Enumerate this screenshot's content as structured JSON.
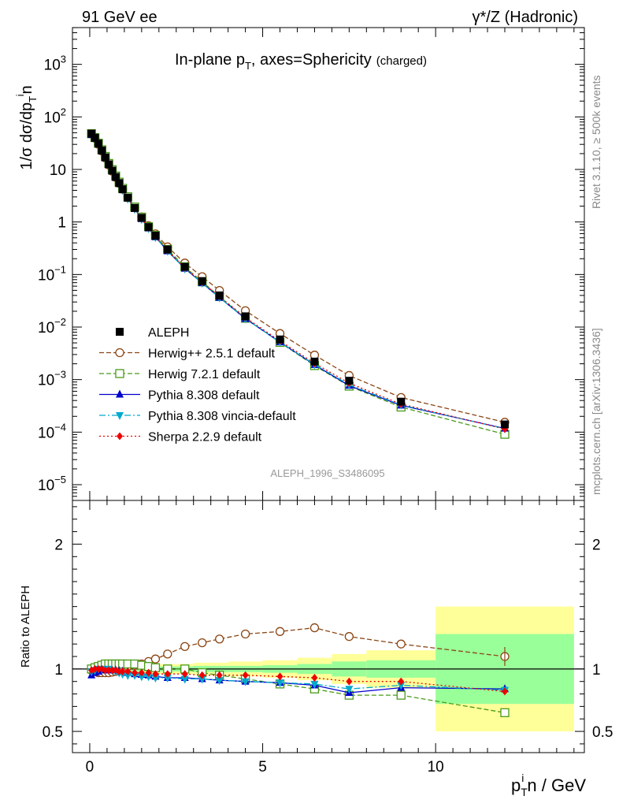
{
  "header": {
    "left": "91 GeV ee",
    "right": "γ*/Z (Hadronic)"
  },
  "side_labels": {
    "rivet": "Rivet 3.1.10, ≥ 500k events",
    "mcplots": "mcplots.cern.ch [arXiv:1306.3436]"
  },
  "chart_data": {
    "type": "line",
    "title": "In-plane p_T, axes=Sphericity (charged)",
    "title_main": "In-plane p",
    "title_sub": "T",
    "title_rest": ", axes=Sphericity",
    "title_small": "(charged)",
    "analysis_id": "ALEPH_1996_S3486095",
    "xlabel": "p_T^i n / GeV",
    "xlabel_parts": {
      "p": "p",
      "sub": "T",
      "sup": "i",
      "rest": "n / GeV"
    },
    "ylabel": "1/σ dσ/dp_T^i n",
    "ylabel_parts": {
      "main": "1/σ dσ/dp",
      "sub": "T",
      "sup": "i",
      "rest": "n"
    },
    "ratio_ylabel": "Ratio to ALEPH",
    "xlim": [
      -0.5,
      14.3
    ],
    "ylim_log": [
      -5.3,
      3.7
    ],
    "ratio_ylim": [
      0.33,
      2.35
    ],
    "x_ticks": [
      0,
      5,
      10
    ],
    "x_tick_labels": [
      "0",
      "5",
      "10"
    ],
    "y_ticks": [
      {
        "v": 3,
        "base": "10",
        "exp": "3"
      },
      {
        "v": 2,
        "base": "10",
        "exp": "2"
      },
      {
        "v": 1,
        "base": "10",
        "exp": ""
      },
      {
        "v": 0,
        "base": "1",
        "exp": ""
      },
      {
        "v": -1,
        "base": "10",
        "exp": "−1"
      },
      {
        "v": -2,
        "base": "10",
        "exp": "−2"
      },
      {
        "v": -3,
        "base": "10",
        "exp": "−3"
      },
      {
        "v": -4,
        "base": "10",
        "exp": "−4"
      },
      {
        "v": -5,
        "base": "10",
        "exp": "−5"
      }
    ],
    "ratio_ticks": [
      {
        "v": 0.5,
        "label": "0.5"
      },
      {
        "v": 1,
        "label": "1"
      },
      {
        "v": 2,
        "label": "2"
      }
    ],
    "x": [
      0.05,
      0.15,
      0.25,
      0.35,
      0.45,
      0.55,
      0.65,
      0.75,
      0.85,
      0.95,
      1.1,
      1.3,
      1.5,
      1.7,
      1.9,
      2.25,
      2.75,
      3.25,
      3.75,
      4.5,
      5.5,
      6.5,
      7.5,
      9.0,
      12.0
    ],
    "data": {
      "name": "ALEPH",
      "values": [
        48,
        40,
        31,
        23,
        17,
        12.5,
        9.5,
        7.2,
        5.5,
        4.2,
        2.9,
        1.85,
        1.2,
        0.8,
        0.55,
        0.3,
        0.14,
        0.075,
        0.04,
        0.016,
        0.0058,
        0.0022,
        0.00095,
        0.00038,
        0.00014
      ],
      "bands": [
        {
          "x0": 0.0,
          "x1": 1.0,
          "inner": 0.02,
          "outer": 0.03
        },
        {
          "x0": 1.0,
          "x1": 2.0,
          "inner": 0.02,
          "outer": 0.04
        },
        {
          "x0": 2.0,
          "x1": 3.0,
          "inner": 0.02,
          "outer": 0.04
        },
        {
          "x0": 3.0,
          "x1": 4.0,
          "inner": 0.025,
          "outer": 0.05
        },
        {
          "x0": 4.0,
          "x1": 5.0,
          "inner": 0.025,
          "outer": 0.06
        },
        {
          "x0": 5.0,
          "x1": 6.0,
          "inner": 0.03,
          "outer": 0.07
        },
        {
          "x0": 6.0,
          "x1": 7.0,
          "inner": 0.04,
          "outer": 0.09
        },
        {
          "x0": 7.0,
          "x1": 8.0,
          "inner": 0.06,
          "outer": 0.12
        },
        {
          "x0": 8.0,
          "x1": 10.0,
          "inner": 0.07,
          "outer": 0.15
        },
        {
          "x0": 10.0,
          "x1": 14.0,
          "inner": 0.28,
          "outer": 0.5
        }
      ]
    },
    "series": [
      {
        "name": "Herwig++ 2.5.1 default",
        "color": "#8b4513",
        "dash": "6,3",
        "marker": "circle-open",
        "ratio": [
          0.99,
          0.98,
          0.97,
          0.97,
          0.97,
          0.97,
          0.975,
          0.98,
          0.99,
          1.0,
          1.02,
          1.03,
          1.04,
          1.06,
          1.08,
          1.12,
          1.18,
          1.21,
          1.24,
          1.28,
          1.3,
          1.33,
          1.26,
          1.2,
          1.1
        ]
      },
      {
        "name": "Herwig 7.2.1 default",
        "color": "#4a9a1a",
        "dash": "6,3",
        "marker": "square-open",
        "ratio": [
          1.0,
          1.01,
          1.02,
          1.03,
          1.04,
          1.04,
          1.04,
          1.04,
          1.04,
          1.04,
          1.04,
          1.04,
          1.03,
          1.02,
          1.01,
          1.0,
          1.0,
          0.97,
          0.95,
          0.92,
          0.88,
          0.84,
          0.79,
          0.79,
          0.65
        ]
      },
      {
        "name": "Pythia 8.308 default",
        "color": "#0000cc",
        "dash": "",
        "marker": "triangle-up",
        "ratio": [
          0.95,
          0.97,
          0.98,
          0.99,
          0.99,
          0.99,
          0.99,
          0.99,
          0.985,
          0.98,
          0.97,
          0.96,
          0.955,
          0.95,
          0.94,
          0.93,
          0.93,
          0.92,
          0.91,
          0.9,
          0.89,
          0.87,
          0.81,
          0.85,
          0.84
        ]
      },
      {
        "name": "Pythia 8.308 vincia-default",
        "color": "#00aacc",
        "dash": "8,3,2,3",
        "marker": "triangle-down",
        "ratio": [
          0.98,
          0.99,
          1.0,
          1.0,
          1.0,
          1.0,
          0.99,
          0.98,
          0.97,
          0.96,
          0.95,
          0.95,
          0.94,
          0.94,
          0.93,
          0.93,
          0.92,
          0.92,
          0.91,
          0.9,
          0.89,
          0.88,
          0.84,
          0.87,
          0.83
        ]
      },
      {
        "name": "Sherpa 2.2.9 default",
        "color": "#ee0000",
        "dash": "2,3",
        "marker": "diamond",
        "ratio": [
          0.99,
          1.0,
          1.0,
          1.0,
          0.99,
          0.99,
          0.99,
          0.99,
          0.98,
          0.98,
          0.98,
          0.97,
          0.97,
          0.97,
          0.96,
          0.96,
          0.96,
          0.95,
          0.95,
          0.95,
          0.94,
          0.93,
          0.9,
          0.9,
          0.82
        ]
      }
    ]
  }
}
